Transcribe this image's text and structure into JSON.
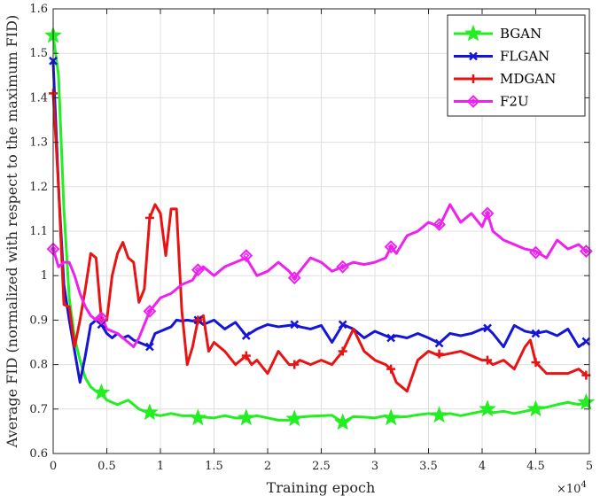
{
  "chart_data": {
    "type": "line",
    "title": "",
    "xlabel": "Training epoch",
    "ylabel": "Average FID (normalized with respect to the maximum FID)",
    "x_multiplier_label": "×10",
    "x_multiplier_exponent": "4",
    "xlim": [
      0,
      50000
    ],
    "ylim": [
      0.6,
      1.6
    ],
    "x_ticks": [
      0,
      5000,
      10000,
      15000,
      20000,
      25000,
      30000,
      35000,
      40000,
      45000,
      50000
    ],
    "x_tick_labels": [
      "0",
      "0.5",
      "1",
      "1.5",
      "2",
      "2.5",
      "3",
      "3.5",
      "4",
      "4.5",
      "5"
    ],
    "y_ticks": [
      0.6,
      0.7,
      0.8,
      0.9,
      1.0,
      1.1,
      1.2,
      1.3,
      1.4,
      1.5,
      1.6
    ],
    "y_tick_labels": [
      "0.6",
      "0.7",
      "0.8",
      "0.9",
      "1",
      "1.1",
      "1.2",
      "1.3",
      "1.4",
      "1.5",
      "1.6"
    ],
    "grid": true,
    "legend_position": "top-right",
    "series": [
      {
        "name": "BGAN",
        "color": "#22ee22",
        "marker": "star",
        "x": [
          0,
          500,
          1000,
          1500,
          2000,
          2500,
          3000,
          3500,
          4000,
          4500,
          5000,
          6000,
          7000,
          8000,
          9000,
          10000,
          11000,
          12000,
          13000,
          13500,
          14000,
          15000,
          16000,
          17000,
          18000,
          19000,
          20000,
          21000,
          22000,
          22500,
          23000,
          24000,
          25000,
          26000,
          27000,
          28000,
          29000,
          30000,
          31000,
          31500,
          32000,
          33000,
          34000,
          35000,
          36000,
          37000,
          38000,
          39000,
          40000,
          40500,
          41000,
          42000,
          43000,
          44000,
          45000,
          46000,
          47000,
          48000,
          49000,
          49700
        ],
        "y": [
          1.54,
          1.45,
          1.15,
          0.95,
          0.86,
          0.81,
          0.77,
          0.75,
          0.74,
          0.735,
          0.72,
          0.71,
          0.72,
          0.7,
          0.69,
          0.685,
          0.69,
          0.685,
          0.685,
          0.68,
          0.682,
          0.68,
          0.685,
          0.68,
          0.68,
          0.685,
          0.68,
          0.675,
          0.675,
          0.68,
          0.682,
          0.684,
          0.685,
          0.686,
          0.67,
          0.683,
          0.682,
          0.68,
          0.685,
          0.68,
          0.682,
          0.683,
          0.687,
          0.69,
          0.686,
          0.69,
          0.685,
          0.69,
          0.695,
          0.7,
          0.692,
          0.695,
          0.69,
          0.695,
          0.7,
          0.704,
          0.71,
          0.715,
          0.71,
          0.715
        ],
        "marker_x": [
          0,
          4500,
          9000,
          13500,
          18000,
          22500,
          27000,
          31500,
          36000,
          40500,
          45000,
          49700
        ],
        "marker_y": [
          1.54,
          0.737,
          0.692,
          0.68,
          0.68,
          0.678,
          0.67,
          0.68,
          0.686,
          0.7,
          0.7,
          0.715
        ]
      },
      {
        "name": "FLGAN",
        "color": "#1515d8",
        "marker": "x",
        "x": [
          0,
          500,
          1000,
          1500,
          2000,
          2500,
          3000,
          3500,
          4000,
          4500,
          5000,
          5500,
          6000,
          6500,
          7000,
          7500,
          8000,
          8500,
          9000,
          9500,
          10000,
          10500,
          11000,
          11500,
          12000,
          12500,
          13000,
          13500,
          14000,
          15000,
          16000,
          17000,
          18000,
          19000,
          20000,
          21000,
          22000,
          22500,
          23000,
          24000,
          25000,
          26000,
          27000,
          28000,
          29000,
          30000,
          31000,
          31500,
          32000,
          33000,
          34000,
          35000,
          36000,
          37000,
          38000,
          39000,
          40000,
          40500,
          41000,
          42000,
          43000,
          44000,
          45000,
          46000,
          47000,
          48000,
          49000,
          49700
        ],
        "y": [
          1.48,
          1.2,
          0.98,
          0.9,
          0.83,
          0.76,
          0.82,
          0.89,
          0.9,
          0.89,
          0.87,
          0.86,
          0.87,
          0.86,
          0.865,
          0.855,
          0.85,
          0.845,
          0.84,
          0.87,
          0.875,
          0.88,
          0.885,
          0.9,
          0.898,
          0.9,
          0.898,
          0.9,
          0.89,
          0.9,
          0.88,
          0.895,
          0.865,
          0.88,
          0.89,
          0.885,
          0.888,
          0.89,
          0.885,
          0.88,
          0.888,
          0.85,
          0.89,
          0.88,
          0.86,
          0.875,
          0.865,
          0.86,
          0.865,
          0.86,
          0.87,
          0.86,
          0.848,
          0.87,
          0.865,
          0.87,
          0.88,
          0.882,
          0.87,
          0.84,
          0.888,
          0.875,
          0.87,
          0.875,
          0.865,
          0.88,
          0.84,
          0.852
        ],
        "marker_x": [
          0,
          4500,
          9000,
          13500,
          18000,
          22500,
          27000,
          31500,
          36000,
          40500,
          45000,
          49700
        ],
        "marker_y": [
          1.483,
          0.89,
          0.84,
          0.9,
          0.865,
          0.89,
          0.89,
          0.86,
          0.848,
          0.882,
          0.87,
          0.852
        ],
        "note": ""
      },
      {
        "name": "MDGAN",
        "color": "#e81313",
        "marker": "plus",
        "x": [
          0,
          500,
          1000,
          1500,
          2000,
          2500,
          3000,
          3500,
          4000,
          4500,
          5000,
          5500,
          6000,
          6500,
          7000,
          7500,
          8000,
          8500,
          9000,
          9500,
          10000,
          10500,
          11000,
          11500,
          12000,
          12500,
          13000,
          13500,
          14000,
          14500,
          15000,
          16000,
          17000,
          18000,
          18500,
          19000,
          20000,
          21000,
          22000,
          22500,
          23000,
          24000,
          25000,
          26000,
          27000,
          28000,
          29000,
          30000,
          31000,
          31500,
          32000,
          32500,
          33000,
          34000,
          35000,
          36000,
          37000,
          38000,
          39000,
          40000,
          40500,
          41000,
          42000,
          43000,
          44000,
          44500,
          45000,
          46000,
          47000,
          48000,
          49000,
          49700
        ],
        "y": [
          1.41,
          1.2,
          0.935,
          0.93,
          0.84,
          0.9,
          0.97,
          1.05,
          1.04,
          0.9,
          0.9,
          1.0,
          1.05,
          1.075,
          1.04,
          1.03,
          0.94,
          0.97,
          1.13,
          1.16,
          1.14,
          1.045,
          1.15,
          1.15,
          0.92,
          0.8,
          0.84,
          0.9,
          0.91,
          0.83,
          0.85,
          0.83,
          0.8,
          0.82,
          0.8,
          0.81,
          0.78,
          0.83,
          0.8,
          0.8,
          0.81,
          0.8,
          0.81,
          0.8,
          0.83,
          0.88,
          0.83,
          0.81,
          0.8,
          0.79,
          0.76,
          0.75,
          0.74,
          0.81,
          0.83,
          0.82,
          0.825,
          0.83,
          0.82,
          0.81,
          0.81,
          0.8,
          0.81,
          0.79,
          0.84,
          0.855,
          0.805,
          0.78,
          0.78,
          0.78,
          0.79,
          0.776
        ],
        "marker_x": [
          0,
          4500,
          9000,
          13500,
          18000,
          22500,
          27000,
          31500,
          36000,
          40500,
          45000,
          49700
        ],
        "marker_y": [
          1.41,
          0.9,
          1.13,
          0.9,
          0.82,
          0.8,
          0.83,
          0.79,
          0.824,
          0.81,
          0.805,
          0.776
        ]
      },
      {
        "name": "F2U",
        "color": "#ee22ee",
        "marker": "diamond",
        "x": [
          0,
          500,
          1000,
          1500,
          2000,
          2500,
          3000,
          3500,
          4000,
          4500,
          5000,
          6000,
          7000,
          7500,
          8000,
          9000,
          10000,
          11000,
          12000,
          13000,
          13500,
          14000,
          15000,
          16000,
          17000,
          18000,
          18500,
          19000,
          20000,
          21000,
          22000,
          22500,
          23000,
          24000,
          25000,
          26000,
          27000,
          28000,
          29000,
          30000,
          31000,
          31500,
          32000,
          33000,
          34000,
          35000,
          36000,
          37000,
          37500,
          38000,
          39000,
          40000,
          40500,
          41000,
          42000,
          43000,
          44000,
          45000,
          46000,
          47000,
          48000,
          49000,
          49700
        ],
        "y": [
          1.06,
          1.02,
          1.03,
          1.03,
          1.0,
          0.96,
          0.93,
          0.91,
          0.9,
          0.91,
          0.88,
          0.87,
          0.85,
          0.84,
          0.86,
          0.92,
          0.95,
          0.96,
          0.98,
          0.99,
          1.01,
          1.02,
          1.0,
          1.02,
          1.03,
          1.04,
          1.02,
          1.0,
          1.01,
          1.03,
          1.01,
          0.995,
          1.01,
          1.04,
          1.03,
          1.01,
          1.02,
          1.03,
          1.025,
          1.03,
          1.04,
          1.065,
          1.05,
          1.09,
          1.1,
          1.12,
          1.11,
          1.16,
          1.14,
          1.12,
          1.14,
          1.11,
          1.14,
          1.1,
          1.08,
          1.07,
          1.06,
          1.055,
          1.04,
          1.08,
          1.06,
          1.07,
          1.055
        ],
        "marker_x": [
          0,
          4500,
          9000,
          13500,
          18000,
          22500,
          27000,
          31500,
          36000,
          40500,
          45000,
          49700
        ],
        "marker_y": [
          1.06,
          0.905,
          0.92,
          1.013,
          1.045,
          0.995,
          1.02,
          1.065,
          1.115,
          1.14,
          1.052,
          1.055
        ]
      }
    ]
  }
}
